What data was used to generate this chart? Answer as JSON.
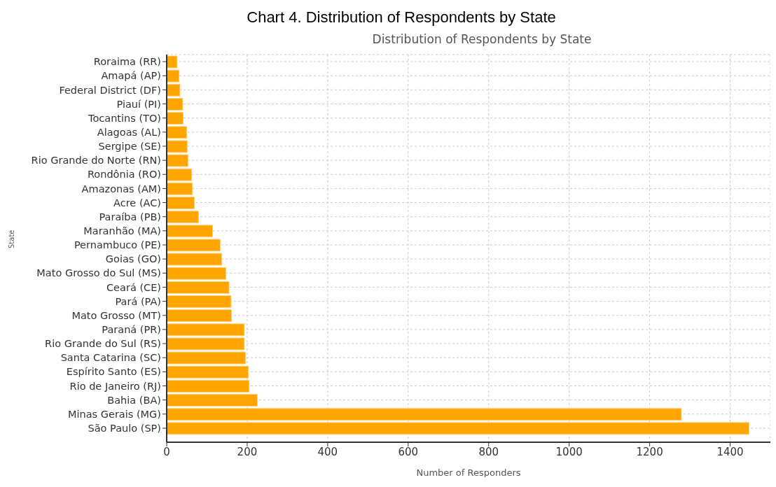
{
  "chart_data": {
    "type": "bar",
    "orientation": "horizontal",
    "title": "Chart 4. Distribution of Respondents by State",
    "subtitle": "Distribution of Respondents by State",
    "xlabel": "Number of Responders",
    "ylabel": "State",
    "categories": [
      "Roraima (RR)",
      "Amapá (AP)",
      "Federal District (DF)",
      "Piauí (PI)",
      "Tocantins (TO)",
      "Alagoas (AL)",
      "Sergipe (SE)",
      "Rio Grande do Norte (RN)",
      "Rondônia (RO)",
      "Amazonas (AM)",
      "Acre (AC)",
      "Paraíba (PB)",
      "Maranhão (MA)",
      "Pernambuco (PE)",
      "Goias (GO)",
      "Mato Grosso do Sul (MS)",
      "Ceará (CE)",
      "Pará (PA)",
      "Mato Grosso (MT)",
      "Paraná (PR)",
      "Rio Grande do Sul (RS)",
      "Santa Catarina (SC)",
      "Espírito Santo (ES)",
      "Rio de Janeiro (RJ)",
      "Bahia (BA)",
      "Minas Gerais (MG)",
      "São Paulo (SP)"
    ],
    "values": [
      26,
      31,
      33,
      40,
      41,
      50,
      51,
      53,
      62,
      64,
      69,
      79,
      114,
      133,
      137,
      147,
      155,
      160,
      161,
      193,
      193,
      196,
      203,
      205,
      225,
      1279,
      1447
    ],
    "color": "#ffa500",
    "xlim": [
      0,
      1500
    ],
    "xticks": [
      0,
      200,
      400,
      600,
      800,
      1000,
      1200,
      1400
    ],
    "grid": true
  }
}
